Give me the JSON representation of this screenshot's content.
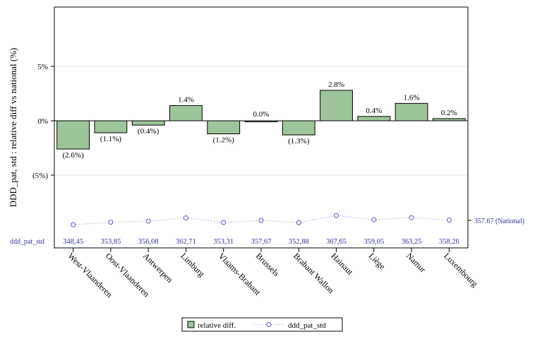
{
  "chart_data": {
    "type": "bar",
    "ylabel": "DDD_pat, std : relative diff  vs national (%)",
    "yticks": [
      {
        "value": 5,
        "label": "5%"
      },
      {
        "value": 0,
        "label": "0%"
      },
      {
        "value": -5,
        "label": "(5%)"
      }
    ],
    "ylim": [
      -11.5,
      10.5
    ],
    "categories": [
      "West-Vlaanderen",
      "Oost-Vlaanderen",
      "Antwerpen",
      "Limburg",
      "Vlaams-Brabant",
      "Brussels",
      "Brabant Wallon",
      "Hainaut",
      "Liège",
      "Namur",
      "Luxembourg"
    ],
    "series": [
      {
        "name": "relative diff.",
        "values": [
          -2.6,
          -1.1,
          -0.4,
          1.4,
          -1.2,
          0.0,
          -1.3,
          2.8,
          0.4,
          1.6,
          0.2
        ],
        "labels": [
          "(2.6%)",
          "(1.1%)",
          "(0.4%)",
          "1.4%",
          "(1.2%)",
          "0.0%",
          "(1.3%)",
          "2.8%",
          "0.4%",
          "1.6%",
          "0.2%"
        ],
        "color": "#9dc49a"
      },
      {
        "name": "ddd_pat_std",
        "values": [
          348.45,
          353.85,
          356.08,
          362.71,
          353.31,
          357.67,
          352.88,
          367.65,
          359.05,
          363.25,
          358.26
        ],
        "labels": [
          "348,45",
          "353,85",
          "356,08",
          "362,71",
          "353,31",
          "357,67",
          "352,88",
          "367,65",
          "359,05",
          "363,25",
          "358,26"
        ],
        "color": "#5555cc"
      }
    ],
    "row_label": "ddd_pat_std",
    "national_value": 357.67,
    "national_label": "357.67 (National)",
    "legend_position": "bottom-center",
    "grid": true
  }
}
